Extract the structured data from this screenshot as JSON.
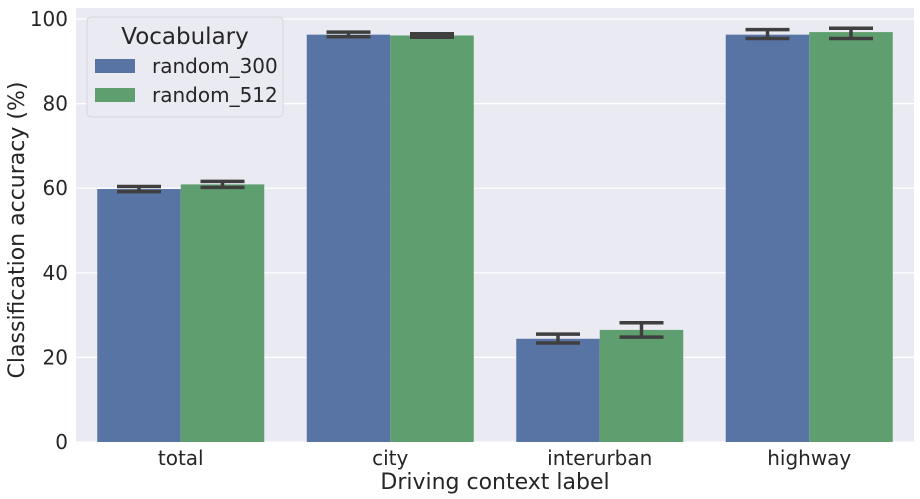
{
  "chart_data": {
    "type": "bar",
    "categories": [
      "total",
      "city",
      "interurban",
      "highway"
    ],
    "series": [
      {
        "name": "random_300",
        "color": "#5874a5",
        "values": [
          59.8,
          96.3,
          24.4,
          96.3
        ],
        "error_low": [
          59.2,
          95.8,
          23.4,
          95.4
        ],
        "error_high": [
          60.4,
          96.9,
          25.5,
          97.5
        ]
      },
      {
        "name": "random_512",
        "color": "#5f9e6e",
        "values": [
          60.9,
          96.1,
          26.5,
          96.9
        ],
        "error_low": [
          60.2,
          95.7,
          24.8,
          95.4
        ],
        "error_high": [
          61.6,
          96.5,
          28.2,
          97.8
        ]
      }
    ],
    "xlabel": "Driving context label",
    "ylabel": "Classification accuracy (%)",
    "ylim": [
      0,
      100
    ],
    "yticks": [
      0,
      20,
      40,
      60,
      80,
      100
    ],
    "grid": true,
    "legend": {
      "title": "Vocabulary",
      "placement": "top-left"
    },
    "background_color": "#eaeaf2",
    "errorbar_color": "#3f3f3f"
  }
}
